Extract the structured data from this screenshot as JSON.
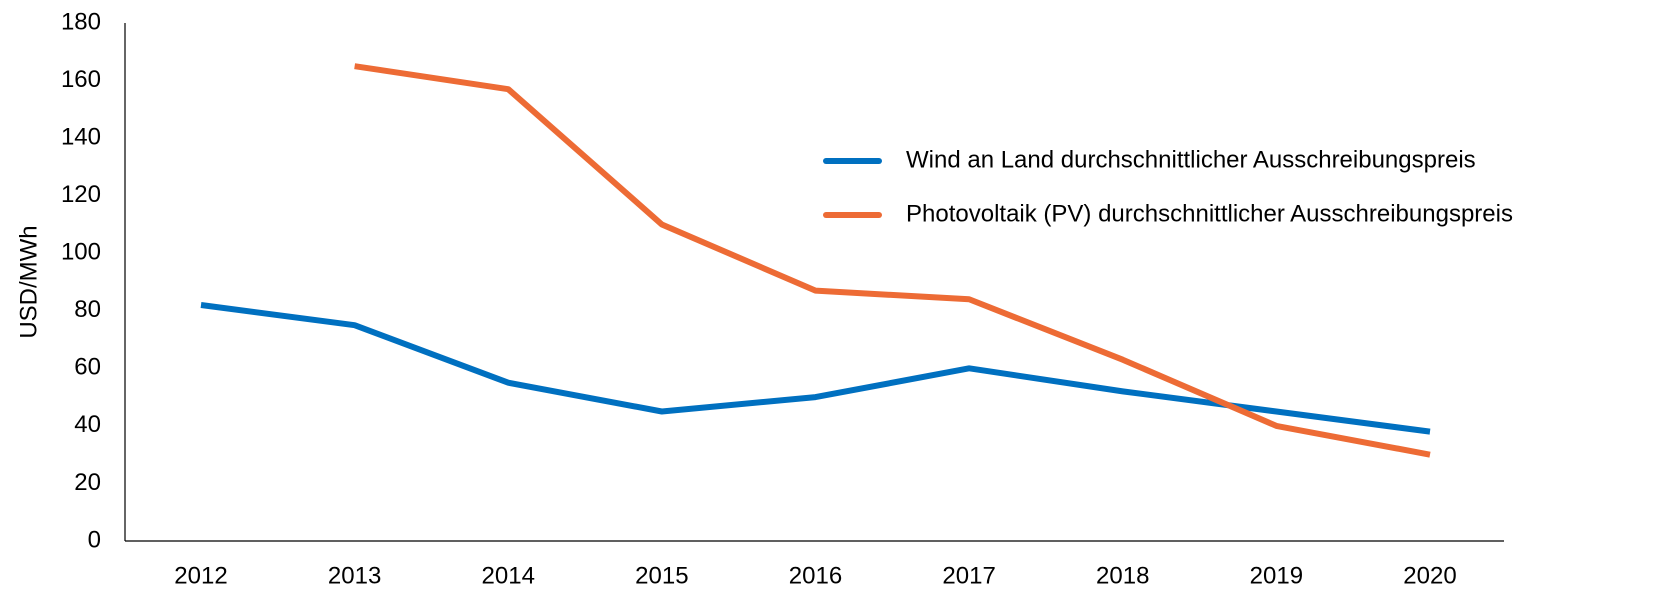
{
  "chart_data": {
    "type": "line",
    "y_label": "USD/MWh",
    "categories": [
      "2012",
      "2013",
      "2014",
      "2015",
      "2016",
      "2017",
      "2018",
      "2019",
      "2020"
    ],
    "series": [
      {
        "name": "Wind an Land durchschnittlicher Ausschreibungspreis",
        "color": "#0070c0",
        "values": [
          82,
          75,
          55,
          45,
          50,
          60,
          52,
          45,
          38
        ]
      },
      {
        "name": "Photovoltaik (PV) durchschnittlicher Ausschreibungspreis",
        "color": "#ed6b35",
        "values": [
          null,
          165,
          157,
          110,
          87,
          84,
          63,
          40,
          30
        ]
      }
    ],
    "ylim": [
      0,
      180
    ],
    "yticks": [
      0,
      20,
      40,
      60,
      80,
      100,
      120,
      140,
      160,
      180
    ],
    "grid": false,
    "legend": "upper right"
  }
}
